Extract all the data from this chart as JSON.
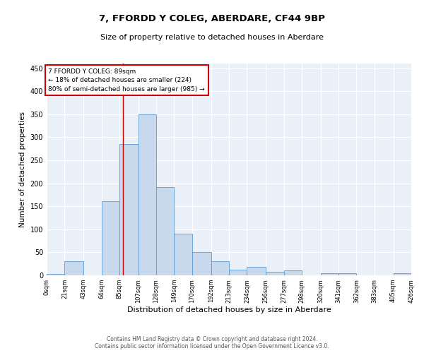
{
  "title": "7, FFORDD Y COLEG, ABERDARE, CF44 9BP",
  "subtitle": "Size of property relative to detached houses in Aberdare",
  "xlabel": "Distribution of detached houses by size in Aberdare",
  "ylabel": "Number of detached properties",
  "bar_color": "#c9d9ed",
  "bar_edge_color": "#5b9bd5",
  "background_color": "#eaf0f8",
  "grid_color": "white",
  "bin_edges": [
    0,
    21,
    43,
    64,
    85,
    107,
    128,
    149,
    170,
    192,
    213,
    234,
    256,
    277,
    298,
    320,
    341,
    362,
    383,
    405,
    426
  ],
  "bin_labels": [
    "0sqm",
    "21sqm",
    "43sqm",
    "64sqm",
    "85sqm",
    "107sqm",
    "128sqm",
    "149sqm",
    "170sqm",
    "192sqm",
    "213sqm",
    "234sqm",
    "256sqm",
    "277sqm",
    "298sqm",
    "320sqm",
    "341sqm",
    "362sqm",
    "383sqm",
    "405sqm",
    "426sqm"
  ],
  "bar_heights": [
    3,
    30,
    0,
    161,
    285,
    350,
    192,
    91,
    50,
    30,
    13,
    18,
    7,
    10,
    0,
    5,
    4,
    0,
    0,
    4
  ],
  "ylim": [
    0,
    460
  ],
  "yticks": [
    0,
    50,
    100,
    150,
    200,
    250,
    300,
    350,
    400,
    450
  ],
  "red_line_x": 89,
  "annotation_text": "7 FFORDD Y COLEG: 89sqm\n← 18% of detached houses are smaller (224)\n80% of semi-detached houses are larger (985) →",
  "annotation_box_color": "white",
  "annotation_box_edge": "#cc0000",
  "footer_text": "Contains HM Land Registry data © Crown copyright and database right 2024.\nContains public sector information licensed under the Open Government Licence v3.0.",
  "red_line_color": "#cc0000",
  "title_fontsize": 9.5,
  "subtitle_fontsize": 8,
  "ylabel_fontsize": 7.5,
  "xlabel_fontsize": 8,
  "tick_fontsize": 6,
  "ytick_fontsize": 7,
  "footer_fontsize": 5.5
}
